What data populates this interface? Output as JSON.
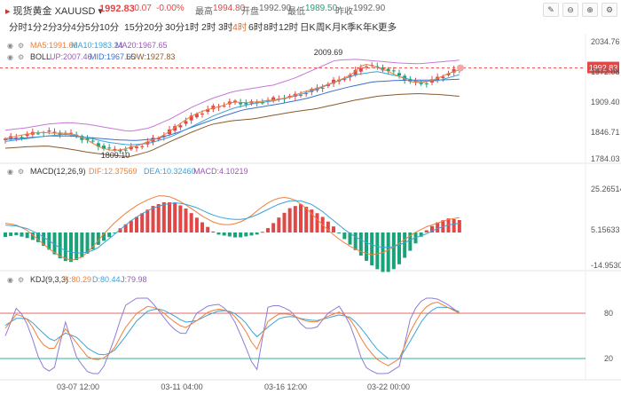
{
  "header": {
    "symbol": "现货黄金 XAUUSD",
    "price": "1992.83",
    "change": "-0.07",
    "change_pct": "-0.00%",
    "high_label": "最高",
    "high": "1994.80",
    "open_label": "开盘",
    "open": "1992.90",
    "low_label": "最低",
    "low": "1989.50",
    "prev_label": "昨收",
    "prev": "1992.90",
    "tools": [
      "✎",
      "⊖",
      "⊕",
      "⚙"
    ]
  },
  "periods": {
    "items": [
      "分时",
      "1分",
      "2分",
      "3分",
      "4分",
      "5分",
      "10分",
      "15分",
      "20分",
      "30分",
      "1时",
      "2时",
      "3时",
      "4时",
      "6时",
      "8时",
      "12时",
      "日K",
      "周K",
      "月K",
      "季K",
      "年K",
      "更多"
    ],
    "active": "4时"
  },
  "indicators": {
    "ma": {
      "ma5_label": "MA5:1991.66",
      "ma10_label": "MA10:1983.24",
      "ma20_label": "MA20:1967.65"
    },
    "boll": {
      "name": "BOLL",
      "up": "UP:2007.46",
      "mid": "MID:1967.65",
      "low": "LOW:1927.83"
    },
    "macd": {
      "name": "MACD(12,26,9)",
      "dif": "DIF:12.37569",
      "dea": "DEA:10.32460",
      "macd": "MACD:4.10219"
    },
    "kdj": {
      "name": "KDJ(9,3,3)",
      "k": "K:80.29",
      "d": "D:80.44",
      "j": "J:79.98"
    }
  },
  "main_axis": [
    "2034.76",
    "1972.08",
    "1909.40",
    "1846.71",
    "1784.03"
  ],
  "current_price_tag": "1992.83",
  "annotations": {
    "high": "2009.69",
    "low": "1809.10"
  },
  "macd_axis": [
    "25.26514",
    "5.15633",
    "-14.95301"
  ],
  "kdj_axis": [
    "80",
    "20"
  ],
  "x_axis": [
    "03-07 12:00",
    "03-11 04:00",
    "03-16 12:00",
    "03-22 00:00"
  ],
  "colors": {
    "up": "#e04848",
    "down": "#1aa37a",
    "ma5": "#f07f3c",
    "ma10": "#3aa3d8",
    "ma20": "#9b59b6"
  }
}
